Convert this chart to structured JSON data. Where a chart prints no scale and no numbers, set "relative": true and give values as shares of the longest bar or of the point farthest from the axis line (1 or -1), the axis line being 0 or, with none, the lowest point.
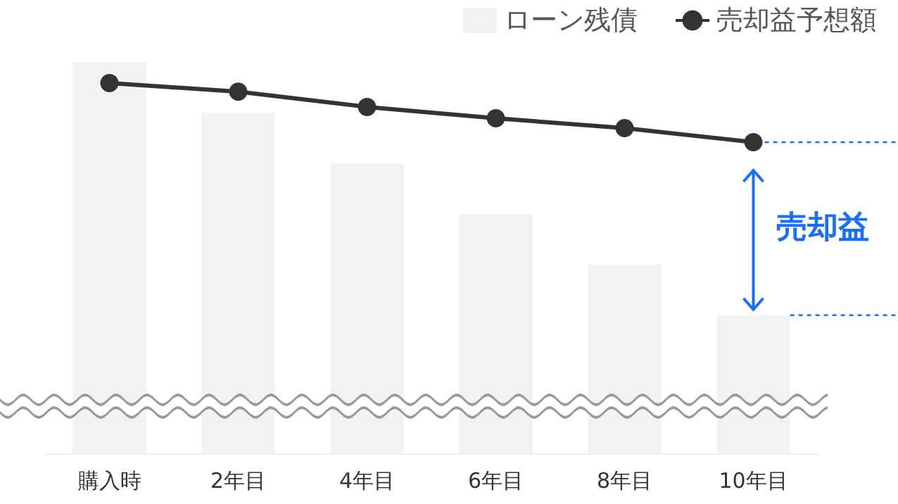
{
  "chart_data": {
    "type": "bar",
    "relative": true,
    "categories": [
      "購入時",
      "2年目",
      "4年目",
      "6年目",
      "8年目",
      "10年目"
    ],
    "series": [
      {
        "name": "ローン残債",
        "color": "#f2f2f2",
        "values": [
          1,
          0.871,
          0.741,
          0.612,
          0.482,
          0.353
        ]
      },
      {
        "name": "売却益予想額",
        "type": "line",
        "color": "#333333",
        "values": [
          0.946,
          0.924,
          0.885,
          0.856,
          0.831,
          0.795
        ]
      }
    ],
    "annotations": [
      "売却益"
    ],
    "marker": "circle",
    "line_style": "solid",
    "legend": "top right"
  }
}
